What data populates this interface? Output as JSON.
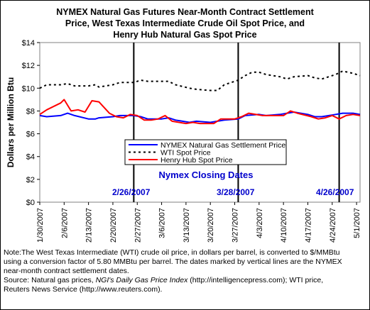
{
  "chart_data": {
    "type": "line",
    "title_lines": [
      "NYMEX Natural Gas Futures Near-Month Contract Settlement",
      "Price, West Texas Intermediate Crude Oil Spot Price, and",
      "Henry Hub Natural Gas Spot Price"
    ],
    "ylabel": "Dollars per Million Btu",
    "xlabel": "",
    "ylim": [
      0,
      14
    ],
    "yticks": [
      0,
      2,
      4,
      6,
      8,
      10,
      12,
      14
    ],
    "ytick_labels": [
      "$0",
      "$2",
      "$4",
      "$6",
      "$8",
      "$10",
      "$12",
      "$14"
    ],
    "xlim": [
      "2007-01-30",
      "2007-05-02"
    ],
    "xticks": [
      "1/30/2007",
      "2/6/2007",
      "2/13/2007",
      "2/20/2007",
      "2/27/2007",
      "3/6/2007",
      "3/13/2007",
      "3/20/2007",
      "3/27/2007",
      "4/3/2007",
      "4/10/2007",
      "4/17/2007",
      "4/24/2007",
      "5/1/2007"
    ],
    "legend_position": "center",
    "series": [
      {
        "name": "NYMEX Natural Gas Settlement Price",
        "color": "#0000ff",
        "style": "solid",
        "points": [
          [
            "2007-01-30",
            7.6
          ],
          [
            "2007-02-01",
            7.5
          ],
          [
            "2007-02-05",
            7.6
          ],
          [
            "2007-02-07",
            7.8
          ],
          [
            "2007-02-09",
            7.6
          ],
          [
            "2007-02-13",
            7.3
          ],
          [
            "2007-02-15",
            7.3
          ],
          [
            "2007-02-16",
            7.4
          ],
          [
            "2007-02-20",
            7.5
          ],
          [
            "2007-02-22",
            7.6
          ],
          [
            "2007-02-26",
            7.6
          ],
          [
            "2007-02-28",
            7.5
          ],
          [
            "2007-03-02",
            7.3
          ],
          [
            "2007-03-06",
            7.3
          ],
          [
            "2007-03-08",
            7.4
          ],
          [
            "2007-03-10",
            7.2
          ],
          [
            "2007-03-14",
            7.0
          ],
          [
            "2007-03-16",
            7.1
          ],
          [
            "2007-03-20",
            7.0
          ],
          [
            "2007-03-22",
            7.1
          ],
          [
            "2007-03-24",
            7.2
          ],
          [
            "2007-03-28",
            7.3
          ],
          [
            "2007-03-30",
            7.6
          ],
          [
            "2007-04-03",
            7.7
          ],
          [
            "2007-04-05",
            7.6
          ],
          [
            "2007-04-09",
            7.7
          ],
          [
            "2007-04-11",
            7.8
          ],
          [
            "2007-04-13",
            7.9
          ],
          [
            "2007-04-17",
            7.7
          ],
          [
            "2007-04-19",
            7.5
          ],
          [
            "2007-04-21",
            7.5
          ],
          [
            "2007-04-25",
            7.7
          ],
          [
            "2007-04-27",
            7.8
          ],
          [
            "2007-04-30",
            7.8
          ],
          [
            "2007-05-02",
            7.7
          ]
        ]
      },
      {
        "name": "WTI Spot Price",
        "color": "#000000",
        "style": "dotted",
        "points": [
          [
            "2007-01-30",
            10.0
          ],
          [
            "2007-02-01",
            10.3
          ],
          [
            "2007-02-05",
            10.3
          ],
          [
            "2007-02-07",
            10.4
          ],
          [
            "2007-02-09",
            10.2
          ],
          [
            "2007-02-13",
            10.2
          ],
          [
            "2007-02-15",
            10.3
          ],
          [
            "2007-02-16",
            10.1
          ],
          [
            "2007-02-20",
            10.3
          ],
          [
            "2007-02-22",
            10.5
          ],
          [
            "2007-02-26",
            10.5
          ],
          [
            "2007-02-28",
            10.7
          ],
          [
            "2007-03-02",
            10.6
          ],
          [
            "2007-03-06",
            10.6
          ],
          [
            "2007-03-08",
            10.6
          ],
          [
            "2007-03-10",
            10.3
          ],
          [
            "2007-03-14",
            10.0
          ],
          [
            "2007-03-16",
            9.9
          ],
          [
            "2007-03-20",
            9.8
          ],
          [
            "2007-03-22",
            9.8
          ],
          [
            "2007-03-24",
            10.3
          ],
          [
            "2007-03-28",
            10.7
          ],
          [
            "2007-03-30",
            11.1
          ],
          [
            "2007-04-01",
            11.4
          ],
          [
            "2007-04-03",
            11.4
          ],
          [
            "2007-04-05",
            11.2
          ],
          [
            "2007-04-09",
            11.0
          ],
          [
            "2007-04-11",
            10.8
          ],
          [
            "2007-04-13",
            11.0
          ],
          [
            "2007-04-17",
            11.1
          ],
          [
            "2007-04-19",
            10.9
          ],
          [
            "2007-04-21",
            10.8
          ],
          [
            "2007-04-25",
            11.2
          ],
          [
            "2007-04-27",
            11.5
          ],
          [
            "2007-04-30",
            11.3
          ],
          [
            "2007-05-02",
            11.1
          ]
        ]
      },
      {
        "name": "Henry Hub Spot Price",
        "color": "#ff0000",
        "style": "solid",
        "points": [
          [
            "2007-01-30",
            7.7
          ],
          [
            "2007-02-01",
            8.1
          ],
          [
            "2007-02-05",
            8.7
          ],
          [
            "2007-02-06",
            9.0
          ],
          [
            "2007-02-08",
            8.0
          ],
          [
            "2007-02-10",
            8.1
          ],
          [
            "2007-02-12",
            7.9
          ],
          [
            "2007-02-14",
            8.9
          ],
          [
            "2007-02-16",
            8.8
          ],
          [
            "2007-02-19",
            7.8
          ],
          [
            "2007-02-21",
            7.5
          ],
          [
            "2007-02-23",
            7.4
          ],
          [
            "2007-02-25",
            7.7
          ],
          [
            "2007-02-27",
            7.6
          ],
          [
            "2007-03-01",
            7.2
          ],
          [
            "2007-03-03",
            7.2
          ],
          [
            "2007-03-05",
            7.3
          ],
          [
            "2007-03-07",
            7.6
          ],
          [
            "2007-03-09",
            7.1
          ],
          [
            "2007-03-13",
            6.9
          ],
          [
            "2007-03-15",
            7.0
          ],
          [
            "2007-03-17",
            6.9
          ],
          [
            "2007-03-21",
            6.9
          ],
          [
            "2007-03-23",
            7.3
          ],
          [
            "2007-03-27",
            7.3
          ],
          [
            "2007-03-29",
            7.5
          ],
          [
            "2007-03-31",
            7.8
          ],
          [
            "2007-04-04",
            7.6
          ],
          [
            "2007-04-06",
            7.6
          ],
          [
            "2007-04-10",
            7.6
          ],
          [
            "2007-04-12",
            8.0
          ],
          [
            "2007-04-14",
            7.8
          ],
          [
            "2007-04-18",
            7.5
          ],
          [
            "2007-04-20",
            7.3
          ],
          [
            "2007-04-22",
            7.4
          ],
          [
            "2007-04-24",
            7.6
          ],
          [
            "2007-04-26",
            7.3
          ],
          [
            "2007-04-28",
            7.6
          ],
          [
            "2007-04-30",
            7.7
          ],
          [
            "2007-05-02",
            7.6
          ]
        ]
      }
    ],
    "vlines": [
      "2007-02-26",
      "2007-03-28",
      "2007-04-26"
    ],
    "vline_labels": [
      "2/26/2007",
      "3/28/2007",
      "4/26/2007"
    ],
    "vline_label_color": "#0000cc",
    "annotation": "Nymex Closing Dates",
    "annotation_color": "#0000cc"
  },
  "note": {
    "line1": "Note:The West Texas Intermediate (WTI) crude oil price, in dollars per barrel,  is converted to $/MMBtu",
    "line2": "using a conversion factor of 5.80 MMBtu per barrel.  The dates marked by vertical lines are the NYMEX",
    "line3": "near-month contract settlement dates.",
    "source_prefix": "Source: Natural gas prices, ",
    "source_title": "NGI's Daily Gas Price Index",
    "source_suffix": " (http://intelligencepress.com); WTI price,",
    "line5": "Reuters News Service (http://www.reuters.com)."
  }
}
